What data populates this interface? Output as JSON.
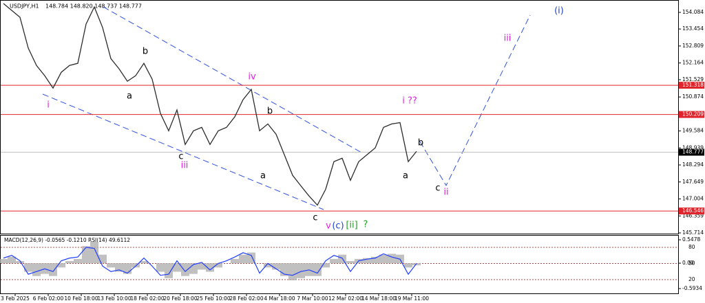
{
  "chart_data": {
    "type": "line",
    "title": "USDJPY,H1",
    "quote": "148.784 148.820 148.737 148.777",
    "xlabels": [
      "3 Feb 2025",
      "6 Feb 02:00",
      "10 Feb 18:00",
      "13 Feb 10:00",
      "18 Feb 02:00",
      "20 Feb 18:00",
      "25 Feb 10:00",
      "28 Feb 02:00",
      "4 Mar 18:00",
      "7 Mar 10:00",
      "12 Mar 02:00",
      "14 Mar 18:00",
      "19 Mar 11:00"
    ],
    "series": [
      {
        "name": "USDJPY",
        "color": "#2b2b2b",
        "values": [
          154.42,
          154.16,
          153.9,
          152.73,
          152.07,
          151.68,
          151.21,
          151.81,
          152.07,
          152.15,
          153.64,
          154.29,
          153.51,
          152.33,
          151.94,
          151.47,
          151.68,
          152.15,
          151.55,
          150.25,
          149.59,
          150.38,
          149.07,
          149.59,
          149.72,
          149.07,
          149.59,
          149.72,
          150.12,
          150.77,
          151.16,
          149.59,
          149.85,
          149.46,
          148.68,
          147.9,
          147.5,
          147.11,
          146.77,
          147.37,
          148.42,
          148.55,
          147.71,
          148.42,
          148.68,
          148.94,
          149.72,
          149.85,
          149.9,
          148.42,
          148.81
        ]
      }
    ],
    "ylim": [
      145.714,
      154.554
    ],
    "yticks": [
      154.084,
      153.454,
      152.809,
      152.164,
      151.529,
      150.874,
      149.584,
      148.939,
      148.294,
      147.649,
      147.004,
      146.359,
      145.714
    ],
    "levels": [
      {
        "value": 151.318,
        "color": "#e0242c"
      },
      {
        "value": 150.209,
        "color": "#e0242c"
      },
      {
        "value": 146.546,
        "color": "#e0242c"
      }
    ],
    "current_price": 148.777,
    "annotations": [
      {
        "text": "i",
        "color": "#e020e0"
      },
      {
        "text": "a",
        "color": "#000000"
      },
      {
        "text": "b",
        "color": "#000000"
      },
      {
        "text": "c",
        "color": "#000000"
      },
      {
        "text": "iii",
        "color": "#e020e0"
      },
      {
        "text": "iv",
        "color": "#e020e0"
      },
      {
        "text": "b",
        "color": "#000000"
      },
      {
        "text": "a",
        "color": "#000000"
      },
      {
        "text": "c",
        "color": "#000000"
      },
      {
        "text": "v",
        "color": "#e020e0"
      },
      {
        "text": "(c)",
        "color": "#2040d0"
      },
      {
        "text": "[ii]",
        "color": "#20a020"
      },
      {
        "text": "?",
        "color": "#20a020"
      },
      {
        "text": "i ??",
        "color": "#e020e0"
      },
      {
        "text": "b",
        "color": "#000000"
      },
      {
        "text": "a",
        "color": "#000000"
      },
      {
        "text": "c",
        "color": "#000000"
      },
      {
        "text": "ii",
        "color": "#e020e0"
      },
      {
        "text": "iii",
        "color": "#e020e0"
      },
      {
        "text": "(i)",
        "color": "#2040d0"
      }
    ],
    "indicator": {
      "title": "MACD(12,26,9) -0.0565 -0.1210 RSI(14) 49.6112",
      "macd": {
        "name": "MACD",
        "color": "#b0b0b0",
        "values": [
          0.1,
          0.15,
          0.05,
          -0.2,
          -0.3,
          -0.25,
          -0.3,
          -0.1,
          0.05,
          0.1,
          0.4,
          0.5,
          0.2,
          -0.1,
          -0.2,
          -0.25,
          -0.1,
          0.05,
          0,
          -0.2,
          -0.35,
          -0.2,
          -0.3,
          -0.25,
          -0.15,
          -0.2,
          -0.1,
          0,
          0.1,
          0.2,
          0.25,
          0,
          -0.1,
          -0.15,
          -0.3,
          -0.4,
          -0.35,
          -0.3,
          -0.3,
          -0.1,
          0.1,
          0.2,
          0.05,
          0.1,
          0.12,
          0.15,
          0.2,
          0.22,
          0.2,
          -0.1,
          -0.05
        ]
      },
      "macd_lim": [
        -0.5934,
        0.5478
      ],
      "macd_ticks": [
        -0.5934,
        {
          "value": 0,
          "label": "0.00"
        },
        0.5478
      ],
      "rsi": {
        "name": "RSI",
        "color": "#1f3cff",
        "values": [
          60,
          65,
          55,
          30,
          35,
          40,
          35,
          55,
          60,
          62,
          80,
          78,
          45,
          35,
          38,
          32,
          45,
          60,
          45,
          28,
          30,
          55,
          35,
          48,
          52,
          38,
          50,
          55,
          62,
          70,
          65,
          32,
          50,
          40,
          30,
          28,
          35,
          38,
          32,
          55,
          65,
          60,
          35,
          55,
          58,
          60,
          68,
          62,
          58,
          30,
          50
        ]
      },
      "rsi_lim": [
        0,
        100
      ],
      "rsi_levels": [
        80,
        50,
        20
      ]
    }
  }
}
